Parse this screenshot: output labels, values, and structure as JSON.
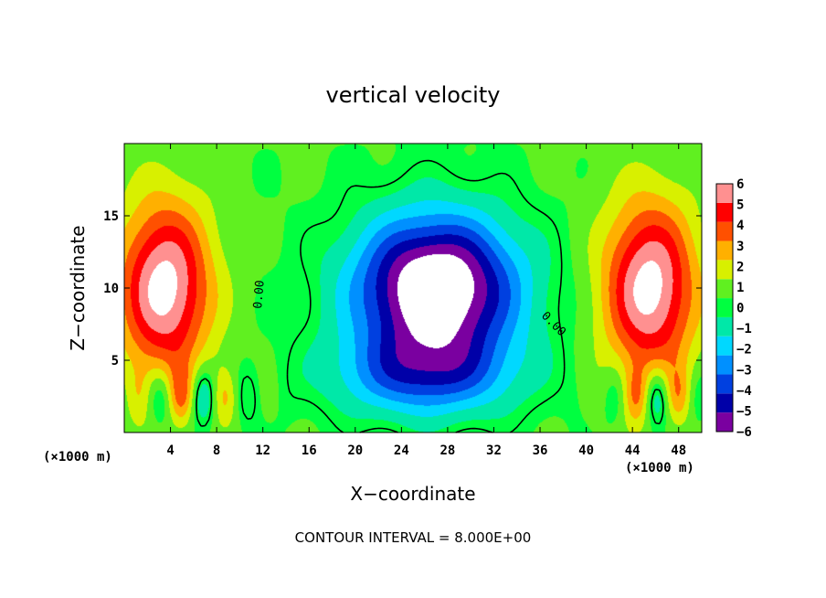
{
  "chart_data": {
    "type": "heatmap",
    "title": "vertical velocity",
    "xlabel": "X−coordinate",
    "ylabel": "Z−coordinate",
    "x_unit_label_left": "(×1000 m)",
    "x_unit_label_right": "(×1000 m)",
    "xlim": [
      0,
      50
    ],
    "ylim": [
      0,
      20
    ],
    "x_ticks": [
      4,
      8,
      12,
      16,
      20,
      24,
      28,
      32,
      36,
      40,
      44,
      48
    ],
    "y_ticks": [
      5,
      10,
      15
    ],
    "colorbar": {
      "levels": [
        -6,
        -5,
        -4,
        -3,
        -2,
        -1,
        0,
        1,
        2,
        3,
        4,
        5,
        6
      ],
      "labels": [
        "6",
        "5",
        "4",
        "3",
        "2",
        "1",
        "0",
        "−1",
        "−2",
        "−3",
        "−4",
        "−5",
        "−6"
      ],
      "colors": [
        "#7a00a0",
        "#0000a8",
        "#0040e0",
        "#0090ff",
        "#00d8ff",
        "#00e8a8",
        "#00ff40",
        "#60f020",
        "#d8f000",
        "#ffb000",
        "#ff5000",
        "#ff0000",
        "#ff9090"
      ],
      "above_max_color": "#ffffff",
      "below_min_color": "#ffffff"
    },
    "contour_labels": [
      "0.00",
      "0.00"
    ],
    "contour_interval_note": "CONTOUR INTERVAL = 8.000E+00",
    "field_features": [
      {
        "kind": "updraft",
        "x": 3.5,
        "z": 10,
        "sx": 4,
        "sz": 6,
        "amp": 6.5
      },
      {
        "kind": "updraft",
        "x": 45.5,
        "z": 10,
        "sx": 4,
        "sz": 6,
        "amp": 6.5
      },
      {
        "kind": "downdraft",
        "x": 27,
        "z": 10,
        "sx": 7,
        "sz": 5,
        "amp": -9
      },
      {
        "kind": "downdraft",
        "x": 26,
        "z": 4,
        "sx": 8,
        "sz": 3,
        "amp": -4
      }
    ]
  }
}
